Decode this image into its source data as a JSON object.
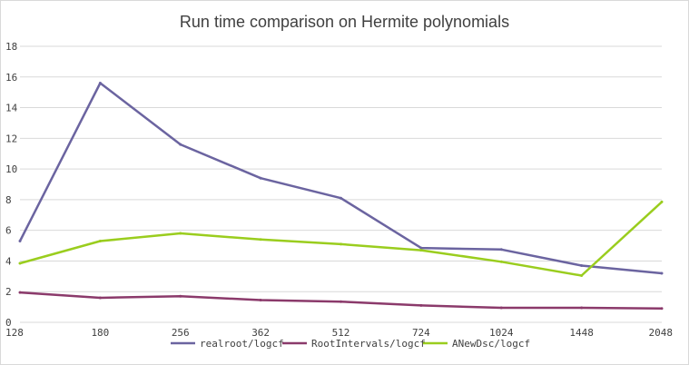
{
  "chart_data": {
    "type": "line",
    "title": "Run time comparison on Hermite polynomials",
    "categories": [
      "128",
      "180",
      "256",
      "362",
      "512",
      "724",
      "1024",
      "1448",
      "2048"
    ],
    "ylim": [
      0,
      18
    ],
    "yticks": [
      0,
      2,
      4,
      6,
      8,
      10,
      12,
      14,
      16,
      18
    ],
    "grid": true,
    "legend_position": "bottom",
    "series": [
      {
        "name": "realroot/logcf",
        "color": "#6b64a0",
        "values": [
          5.3,
          15.6,
          11.6,
          9.4,
          8.1,
          4.85,
          4.75,
          3.7,
          3.2
        ]
      },
      {
        "name": "RootIntervals/logcf",
        "color": "#8b3a6b",
        "values": [
          1.95,
          1.6,
          1.7,
          1.45,
          1.35,
          1.1,
          0.95,
          0.95,
          0.9
        ]
      },
      {
        "name": "ANewDsc/logcf",
        "color": "#9acd1e",
        "values": [
          3.85,
          5.3,
          5.8,
          5.4,
          5.1,
          4.7,
          3.95,
          3.05,
          7.85
        ]
      }
    ]
  }
}
